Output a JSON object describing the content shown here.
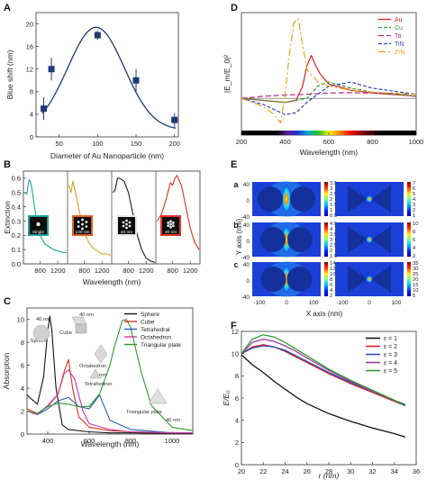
{
  "panels": {
    "A": {
      "letter": "A"
    },
    "B": {
      "letter": "B",
      "insets": [
        "Single",
        "130 nm",
        "40 nm",
        "20 nm"
      ],
      "inset_border_colors": [
        "#1aa39a",
        "#e0621b",
        "#e8e8e8",
        "#e8322a"
      ]
    },
    "C": {
      "letter": "C",
      "annotations": [
        "40 nm",
        "40 nm",
        "Sphere",
        "Cube",
        "Octahedron",
        "40 nm",
        "Tetrahedron",
        "Triangular plate",
        "40 nm"
      ]
    },
    "D": {
      "letter": "D"
    },
    "E": {
      "letter": "E",
      "row_labels": [
        "a",
        "b",
        "c"
      ],
      "colorbar_left": [
        [
          "3.5",
          "3",
          "2.5",
          "2",
          "1.5",
          "1",
          "0.5"
        ],
        [
          "4.5",
          "4",
          "3.5",
          "3",
          "2.5",
          "2",
          "1.5"
        ],
        [
          "14",
          "12",
          "10",
          "8",
          "6",
          "4",
          "2"
        ]
      ],
      "colorbar_right": [
        [
          "7",
          "6",
          "5",
          "4",
          "3",
          "2",
          "1"
        ],
        [
          "10",
          "8",
          "6",
          "4",
          "2"
        ],
        [
          "35",
          "30",
          "25",
          "20",
          "15",
          "10",
          "5"
        ]
      ],
      "y_ticks": [
        "40",
        "20",
        "0",
        "-20",
        "-40"
      ],
      "x_ticks": [
        "-100",
        "0",
        "100"
      ],
      "ylabel": "Y axis (nm)",
      "xlabel": "X axis (nm)"
    },
    "F": {
      "letter": "F"
    }
  },
  "chart_data": [
    {
      "panel": "A",
      "type": "line",
      "x": [
        30,
        40,
        100,
        150,
        200
      ],
      "values": [
        5,
        12,
        18,
        10,
        3
      ],
      "errors": [
        2,
        2,
        0.8,
        2,
        1.2
      ],
      "xlabel": "Diameter of Au Nanoparticle (nm)",
      "ylabel": "Blue shift (nm)",
      "xlim": [
        20,
        205
      ],
      "ylim": [
        0,
        22
      ],
      "xticks": [
        "50",
        "100",
        "150",
        "200"
      ],
      "yticks": [
        "0",
        "4",
        "8",
        "12",
        "16",
        "20"
      ],
      "colors": [
        "#1f3a75"
      ]
    },
    {
      "panel": "B",
      "type": "line",
      "xlabel": "Wavelength (nm)",
      "ylabel": "Extinction",
      "ylim": [
        0,
        0.65
      ],
      "yticks": [
        "0.0",
        "0.1",
        "0.2",
        "0.3",
        "0.4",
        "0.5",
        "0.6"
      ],
      "xticks": [
        "800",
        "1200",
        "800",
        "1200",
        "800",
        "1200",
        "800",
        "1200"
      ],
      "subplots": [
        {
          "name": "Single",
          "color": "#1aa39a",
          "x": [
            450,
            500,
            540,
            560,
            600,
            700,
            800,
            900,
            1000,
            1100,
            1200,
            1300,
            1400
          ],
          "values": [
            0.5,
            0.49,
            0.58,
            0.59,
            0.55,
            0.34,
            0.2,
            0.14,
            0.12,
            0.1,
            0.09,
            0.08,
            0.08
          ]
        },
        {
          "name": "130 nm",
          "color": "#d8a21c",
          "x": [
            450,
            500,
            540,
            600,
            700,
            800,
            900,
            1000,
            1100,
            1200,
            1300,
            1400
          ],
          "values": [
            0.55,
            0.5,
            0.58,
            0.5,
            0.35,
            0.22,
            0.15,
            0.11,
            0.09,
            0.07,
            0.07,
            0.06
          ]
        },
        {
          "name": "40 nm",
          "color": "#1a1a1a",
          "x": [
            450,
            500,
            550,
            600,
            700,
            800,
            900,
            1000,
            1100,
            1200,
            1300,
            1400
          ],
          "values": [
            0.5,
            0.52,
            0.6,
            0.6,
            0.58,
            0.5,
            0.35,
            0.2,
            0.1,
            0.04,
            0.02,
            0.01
          ]
        },
        {
          "name": "20 nm",
          "color": "#e0321e",
          "x": [
            450,
            550,
            650,
            750,
            800,
            850,
            900,
            1000,
            1100,
            1200,
            1300,
            1400
          ],
          "values": [
            0.3,
            0.35,
            0.45,
            0.57,
            0.55,
            0.6,
            0.62,
            0.55,
            0.4,
            0.25,
            0.15,
            0.1
          ]
        }
      ]
    },
    {
      "panel": "C",
      "type": "line",
      "xlabel": "Wavelength (nm)",
      "ylabel": "Absorption",
      "xlim": [
        300,
        1100
      ],
      "ylim": [
        0,
        11
      ],
      "xticks": [
        "400",
        "600",
        "800",
        "1000"
      ],
      "yticks": [
        "0",
        "2",
        "4",
        "6",
        "8",
        "10"
      ],
      "series": [
        {
          "name": "Sphere",
          "color": "#111111",
          "x": [
            300,
            350,
            380,
            400,
            410,
            420,
            440,
            470,
            500,
            600,
            700,
            800,
            1000,
            1100
          ],
          "values": [
            3.4,
            2.6,
            5.0,
            9.0,
            10.3,
            9.0,
            4.0,
            0.8,
            0.4,
            0.2,
            0.1,
            0.1,
            0.05,
            0.05
          ]
        },
        {
          "name": "Cube",
          "color": "#e0301e",
          "x": [
            300,
            350,
            400,
            450,
            480,
            500,
            520,
            550,
            600,
            700,
            800,
            1000,
            1100
          ],
          "values": [
            2.2,
            1.8,
            2.4,
            3.5,
            5.5,
            6.5,
            4.0,
            1.5,
            0.6,
            0.3,
            0.2,
            0.1,
            0.1
          ]
        },
        {
          "name": "Tetrahedral",
          "color": "#2a58b8",
          "x": [
            300,
            350,
            400,
            450,
            500,
            550,
            600,
            650,
            700,
            800,
            1000,
            1100
          ],
          "values": [
            2.0,
            1.7,
            2.2,
            2.9,
            3.2,
            2.4,
            2.2,
            3.4,
            1.2,
            0.4,
            0.1,
            0.1
          ]
        },
        {
          "name": "Octahedron",
          "color": "#cc3aa6",
          "x": [
            300,
            350,
            400,
            450,
            480,
            500,
            530,
            570,
            600,
            700,
            800,
            1000,
            1100
          ],
          "values": [
            2.0,
            1.7,
            2.5,
            3.5,
            5.3,
            5.6,
            4.8,
            2.0,
            0.9,
            0.4,
            0.2,
            0.1,
            0.1
          ]
        },
        {
          "name": "Triangular plate",
          "color": "#2e9b2e",
          "x": [
            300,
            350,
            400,
            450,
            500,
            550,
            600,
            650,
            700,
            720,
            760,
            780,
            800,
            850,
            900,
            1000,
            1100
          ],
          "values": [
            2.0,
            1.8,
            2.4,
            2.7,
            2.6,
            2.4,
            2.4,
            3.5,
            6.0,
            7.5,
            9.9,
            10.0,
            9.3,
            5.5,
            2.5,
            0.6,
            0.3
          ]
        }
      ]
    },
    {
      "panel": "D",
      "type": "line",
      "xlabel": "Wavelength (nm)",
      "ylabel": "|E_m/E_0|²",
      "xlim": [
        200,
        1000
      ],
      "ylim": [
        0,
        30
      ],
      "xticks": [
        "200",
        "400",
        "600",
        "800",
        "1000"
      ],
      "series": [
        {
          "name": "Au",
          "color": "#dd2222",
          "dash": "",
          "x": [
            200,
            300,
            400,
            450,
            480,
            500,
            520,
            540,
            560,
            600,
            700,
            800,
            1000
          ],
          "values": [
            9.0,
            8.5,
            8.0,
            8.5,
            12.0,
            17.0,
            19.5,
            17.0,
            15.0,
            12.5,
            11.0,
            10.3,
            9.5
          ]
        },
        {
          "name": "Cu",
          "color": "#33a033",
          "dash": "4 2",
          "x": [
            200,
            300,
            400,
            500,
            550,
            600,
            700,
            800,
            1000
          ],
          "values": [
            9.0,
            8.5,
            8.0,
            9.0,
            12.0,
            13.0,
            11.5,
            10.5,
            9.5
          ]
        },
        {
          "name": "Ta",
          "color": "#b12a8f",
          "dash": "6 3",
          "x": [
            200,
            300,
            400,
            500,
            600,
            700,
            800,
            900,
            1000
          ],
          "values": [
            9.0,
            9.5,
            9.8,
            10.0,
            10.3,
            10.4,
            10.3,
            10.2,
            10.0
          ]
        },
        {
          "name": "TiN",
          "color": "#2a4bb8",
          "dash": "4 2",
          "x": [
            200,
            300,
            400,
            450,
            500,
            600,
            700,
            800,
            1000
          ],
          "values": [
            9.0,
            7.5,
            5.0,
            5.5,
            8.0,
            12.0,
            13.0,
            11.5,
            10.0
          ]
        },
        {
          "name": "ZrN",
          "color": "#e8a21c",
          "dash": "8 3 2 3",
          "x": [
            200,
            300,
            350,
            380,
            400,
            420,
            440,
            460,
            480,
            500,
            550,
            600,
            700,
            800,
            1000
          ],
          "values": [
            9.0,
            7.0,
            5.0,
            3.0,
            10.0,
            20.0,
            27.5,
            28.5,
            22.0,
            16.0,
            13.0,
            12.0,
            11.0,
            10.5,
            10.0
          ]
        }
      ]
    },
    {
      "panel": "F",
      "type": "line",
      "xlabel": "r (nm)",
      "ylabel": "E/E₀",
      "xlim": [
        20,
        36
      ],
      "ylim": [
        0,
        12
      ],
      "xticks": [
        "20",
        "22",
        "24",
        "26",
        "28",
        "30",
        "32",
        "34",
        "36"
      ],
      "yticks": [
        "0",
        "2",
        "4",
        "6",
        "8",
        "10",
        "12"
      ],
      "series": [
        {
          "name": "ε = 1",
          "color": "#111111",
          "x": [
            20,
            21,
            22,
            23,
            24,
            25,
            26,
            28,
            30,
            32,
            34,
            35
          ],
          "values": [
            9.9,
            9.0,
            8.3,
            7.5,
            6.8,
            6.1,
            5.5,
            4.6,
            3.9,
            3.3,
            2.8,
            2.5
          ]
        },
        {
          "name": "ε = 2",
          "color": "#d82020",
          "x": [
            20,
            21,
            22,
            23,
            24,
            25,
            26,
            28,
            30,
            32,
            34,
            35
          ],
          "values": [
            10.0,
            10.6,
            10.8,
            10.6,
            10.2,
            9.7,
            9.2,
            8.2,
            7.3,
            6.5,
            5.7,
            5.3
          ]
        },
        {
          "name": "ε = 3",
          "color": "#2a4bb8",
          "x": [
            20,
            21,
            22,
            23,
            24,
            25,
            26,
            28,
            30,
            32,
            34,
            35
          ],
          "values": [
            10.0,
            10.5,
            10.7,
            10.6,
            10.3,
            9.8,
            9.3,
            8.3,
            7.4,
            6.6,
            5.8,
            5.4
          ]
        },
        {
          "name": "ε = 4",
          "color": "#9c3aa0",
          "x": [
            20,
            21,
            22,
            23,
            24,
            25,
            26,
            28,
            30,
            32,
            34,
            35
          ],
          "values": [
            10.0,
            11.0,
            11.3,
            11.1,
            10.7,
            10.2,
            9.6,
            8.5,
            7.5,
            6.6,
            5.8,
            5.3
          ]
        },
        {
          "name": "ε = 5",
          "color": "#2e9b2e",
          "x": [
            20,
            21,
            22,
            23,
            24,
            25,
            26,
            28,
            30,
            32,
            34,
            35
          ],
          "values": [
            10.0,
            11.3,
            11.7,
            11.5,
            11.0,
            10.4,
            9.8,
            8.6,
            7.6,
            6.7,
            5.8,
            5.3
          ]
        }
      ]
    }
  ]
}
